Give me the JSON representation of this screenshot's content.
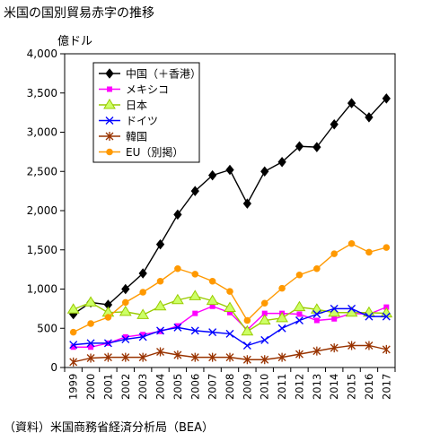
{
  "title": "米国の国別貿易赤字の推移",
  "caption": "（資料）米国商務省経済分析局（BEA）",
  "chart_data": {
    "type": "line",
    "unit_label": "億ドル",
    "x": [
      "1999",
      "2000",
      "2001",
      "2002",
      "2003",
      "2004",
      "2005",
      "2006",
      "2007",
      "2008",
      "2009",
      "2010",
      "2011",
      "2012",
      "2013",
      "2014",
      "2015",
      "2016",
      "2017"
    ],
    "ylim": [
      0,
      4000
    ],
    "yticks": [
      0,
      500,
      1000,
      1500,
      2000,
      2500,
      3000,
      3500,
      4000
    ],
    "ytick_labels": [
      "0",
      "500",
      "1,000",
      "1,500",
      "2,000",
      "2,500",
      "3,000",
      "3,500",
      "4,000"
    ],
    "grid": false,
    "legend_position": "top-left",
    "series": [
      {
        "name": "中国（＋香港）",
        "color": "#000000",
        "marker": "diamond",
        "values": [
          680,
          830,
          800,
          1000,
          1200,
          1570,
          1950,
          2250,
          2450,
          2520,
          2090,
          2500,
          2620,
          2820,
          2810,
          3100,
          3370,
          3190,
          3430
        ]
      },
      {
        "name": "メキシコ",
        "color": "#ff00ff",
        "marker": "square",
        "values": [
          260,
          260,
          310,
          390,
          420,
          460,
          530,
          690,
          780,
          700,
          480,
          690,
          690,
          680,
          600,
          620,
          690,
          680,
          770
        ]
      },
      {
        "name": "日本",
        "color": "#99cc00",
        "marker": "triangle",
        "values": [
          740,
          830,
          700,
          710,
          670,
          780,
          860,
          910,
          850,
          760,
          460,
          600,
          630,
          770,
          740,
          700,
          700,
          700,
          690
        ]
      },
      {
        "name": "ドイツ",
        "color": "#0000ff",
        "marker": "x",
        "values": [
          290,
          310,
          310,
          360,
          390,
          470,
          510,
          470,
          450,
          430,
          280,
          350,
          500,
          600,
          680,
          750,
          750,
          650,
          650
        ]
      },
      {
        "name": "韓国",
        "color": "#993300",
        "marker": "star",
        "values": [
          70,
          120,
          130,
          130,
          130,
          200,
          160,
          130,
          130,
          130,
          100,
          100,
          130,
          170,
          210,
          250,
          280,
          280,
          230
        ]
      },
      {
        "name": "EU（別掲）",
        "color": "#ff9900",
        "marker": "circle",
        "values": [
          450,
          560,
          640,
          830,
          960,
          1100,
          1260,
          1190,
          1100,
          970,
          600,
          820,
          1010,
          1180,
          1260,
          1450,
          1580,
          1470,
          1530
        ]
      }
    ]
  }
}
